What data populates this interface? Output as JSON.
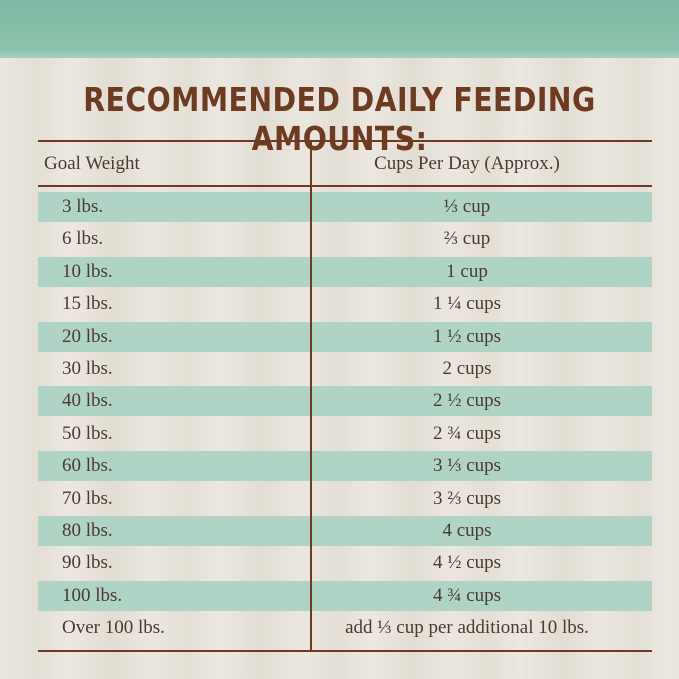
{
  "header": {
    "title": "RECOMMENDED DAILY FEEDING AMOUNTS:"
  },
  "table": {
    "columns": [
      "Goal Weight",
      "Cups Per Day (Approx.)"
    ],
    "rows": [
      [
        "3 lbs.",
        "⅓ cup"
      ],
      [
        "6 lbs.",
        "⅔ cup"
      ],
      [
        "10 lbs.",
        "1 cup"
      ],
      [
        "15 lbs.",
        "1 ¼ cups"
      ],
      [
        "20 lbs.",
        "1 ½ cups"
      ],
      [
        "30 lbs.",
        "2 cups"
      ],
      [
        "40 lbs.",
        "2 ½ cups"
      ],
      [
        "50 lbs.",
        "2 ¾ cups"
      ],
      [
        "60 lbs.",
        "3 ⅓ cups"
      ],
      [
        "70 lbs.",
        "3 ⅔ cups"
      ],
      [
        "80 lbs.",
        "4 cups"
      ],
      [
        "90 lbs.",
        "4 ½ cups"
      ],
      [
        "100 lbs.",
        "4 ¾ cups"
      ],
      [
        "Over 100 lbs.",
        "add ⅓ cup per additional 10 lbs."
      ]
    ]
  }
}
